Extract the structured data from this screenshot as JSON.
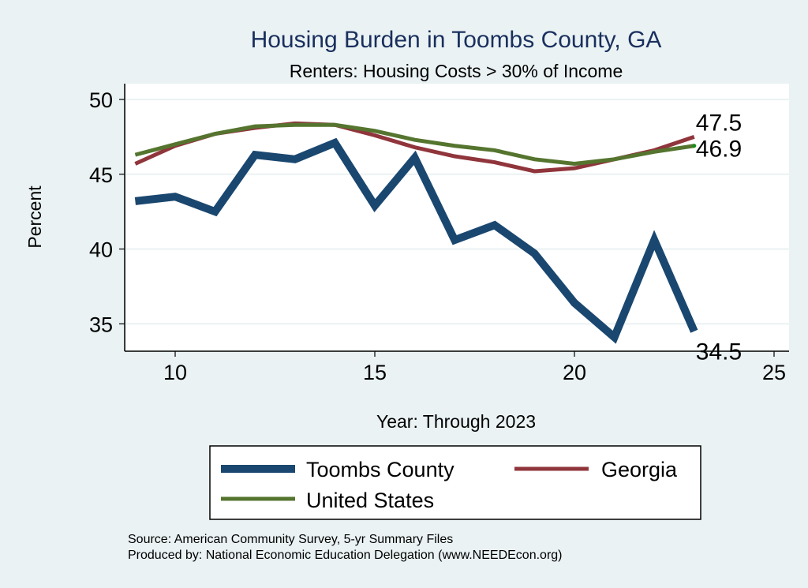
{
  "chart_data": {
    "type": "line",
    "title": "Housing Burden in Toombs County, GA",
    "subtitle": "Renters: Housing Costs > 30% of Income",
    "xlabel": "Year: Through 2023",
    "ylabel": "Percent",
    "xlim": [
      8.75,
      25.35
    ],
    "ylim": [
      33.2,
      51
    ],
    "xticks": [
      10,
      15,
      20,
      25
    ],
    "yticks": [
      35,
      40,
      45,
      50
    ],
    "grid": true,
    "legend_position": "bottom",
    "x": [
      9,
      10,
      11,
      12,
      13,
      14,
      15,
      16,
      17,
      18,
      19,
      20,
      21,
      22,
      23
    ],
    "series": [
      {
        "name": "Toombs County",
        "color": "#1a476f",
        "values": [
          43.2,
          43.5,
          42.5,
          46.3,
          46.0,
          47.1,
          42.9,
          46.1,
          40.6,
          41.6,
          39.7,
          36.4,
          34.1,
          40.6,
          34.5
        ],
        "end_label": "34.5"
      },
      {
        "name": "Georgia",
        "color": "#90353b",
        "values": [
          45.7,
          46.9,
          47.7,
          48.1,
          48.4,
          48.3,
          47.6,
          46.8,
          46.2,
          45.8,
          45.2,
          45.4,
          46.0,
          46.6,
          47.5
        ],
        "end_label": "47.5"
      },
      {
        "name": "United States",
        "color": "#55752f",
        "values": [
          46.3,
          47.0,
          47.7,
          48.2,
          48.3,
          48.3,
          47.9,
          47.3,
          46.9,
          46.6,
          46.0,
          45.7,
          46.0,
          46.5,
          46.9
        ],
        "end_label": "46.9"
      }
    ],
    "notes": [
      "Source: American Community Survey, 5-yr Summary Files",
      "Produced by: National Economic Education Delegation (www.NEEDEcon.org)"
    ]
  }
}
